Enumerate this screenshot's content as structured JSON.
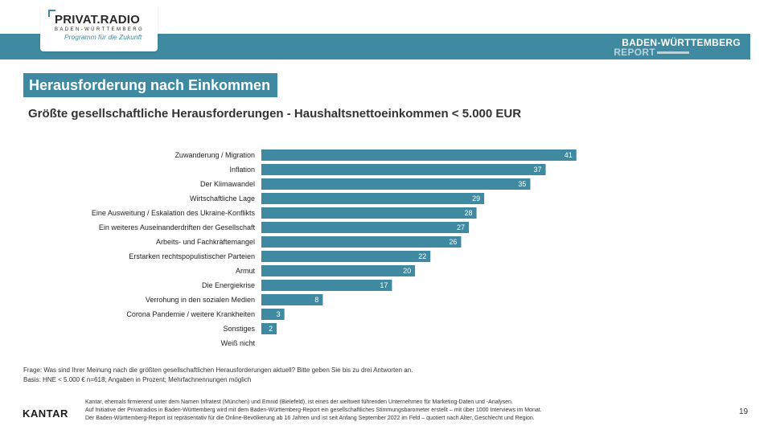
{
  "brand": {
    "name": "PRIVAT.RADIO",
    "region": "BADEN-WÜRTTEMBERG",
    "tagline": "Programm für die Zukunft"
  },
  "banner": {
    "title": "BADEN-WÜRTTEMBERG",
    "subtitle": "REPORT"
  },
  "section_title": "Herausforderung nach Einkommen",
  "chart_data": {
    "type": "bar",
    "orientation": "horizontal",
    "title": "Größte gesellschaftliche Herausforderungen - Haushaltsnettoeinkommen < 5.000 EUR",
    "categories": [
      "Zuwanderung / Migration",
      "Inflation",
      "Der Klimawandel",
      "Wirtschaftliche Lage",
      "Eine Ausweitung / Eskalation des Ukraine-Konflikts",
      "Ein weiteres Auseinanderdriften der Gesellschaft",
      "Arbeits- und Fachkräftemangel",
      "Erstarken rechtspopulistischer Parteien",
      "Armut",
      "Die Energiekrise",
      "Verrohung in den sozialen Medien",
      "Corona Pandemie / weitere Krankheiten",
      "Sonstiges",
      "Weiß nicht"
    ],
    "values": [
      41,
      37,
      35,
      29,
      28,
      27,
      26,
      22,
      20,
      17,
      8,
      3,
      2,
      null
    ],
    "value_labels": [
      "41",
      "37",
      "35",
      "29",
      "28",
      "27",
      "26",
      "22",
      "20",
      "17",
      "8",
      "3",
      "2",
      ""
    ],
    "xlim": [
      0,
      45
    ],
    "grid": false,
    "legend": "none",
    "bar_color": "#3f8aa0"
  },
  "footnotes": {
    "question": "Frage: Was sind Ihrer Meinung nach die größten gesellschaftlichen Herausforderungen aktuell? Bitte geben Sie bis zu drei Antworten an.",
    "basis": "Basis: HNE < 5.000 € n=618; Angaben in Prozent; Mehrfachnennungen möglich"
  },
  "footer": {
    "logo": "KANTAR",
    "disclaimer_lines": [
      "Kantar, ehemals firmierend unter dem Namen Infratest (München) und Emnid (Bielefeld), ist eines der weltweit führenden Unternehmen für Marketing-Daten und -Analysen.",
      "Auf Initiative der Privatradios in Baden-Württemberg wird mit dem Baden-Württemberg-Report ein gesellschaftliches Stimmungsbarometer erstellt – mit über 1000 Interviews im Monat.",
      "Der Baden-Württemberg-Report ist repräsentativ für die Online-Bevölkerung ab 16 Jahren und ist seit Anfang September 2022 im Feld – quotiert nach Alter, Geschlecht und Region."
    ],
    "page_number": "19"
  }
}
